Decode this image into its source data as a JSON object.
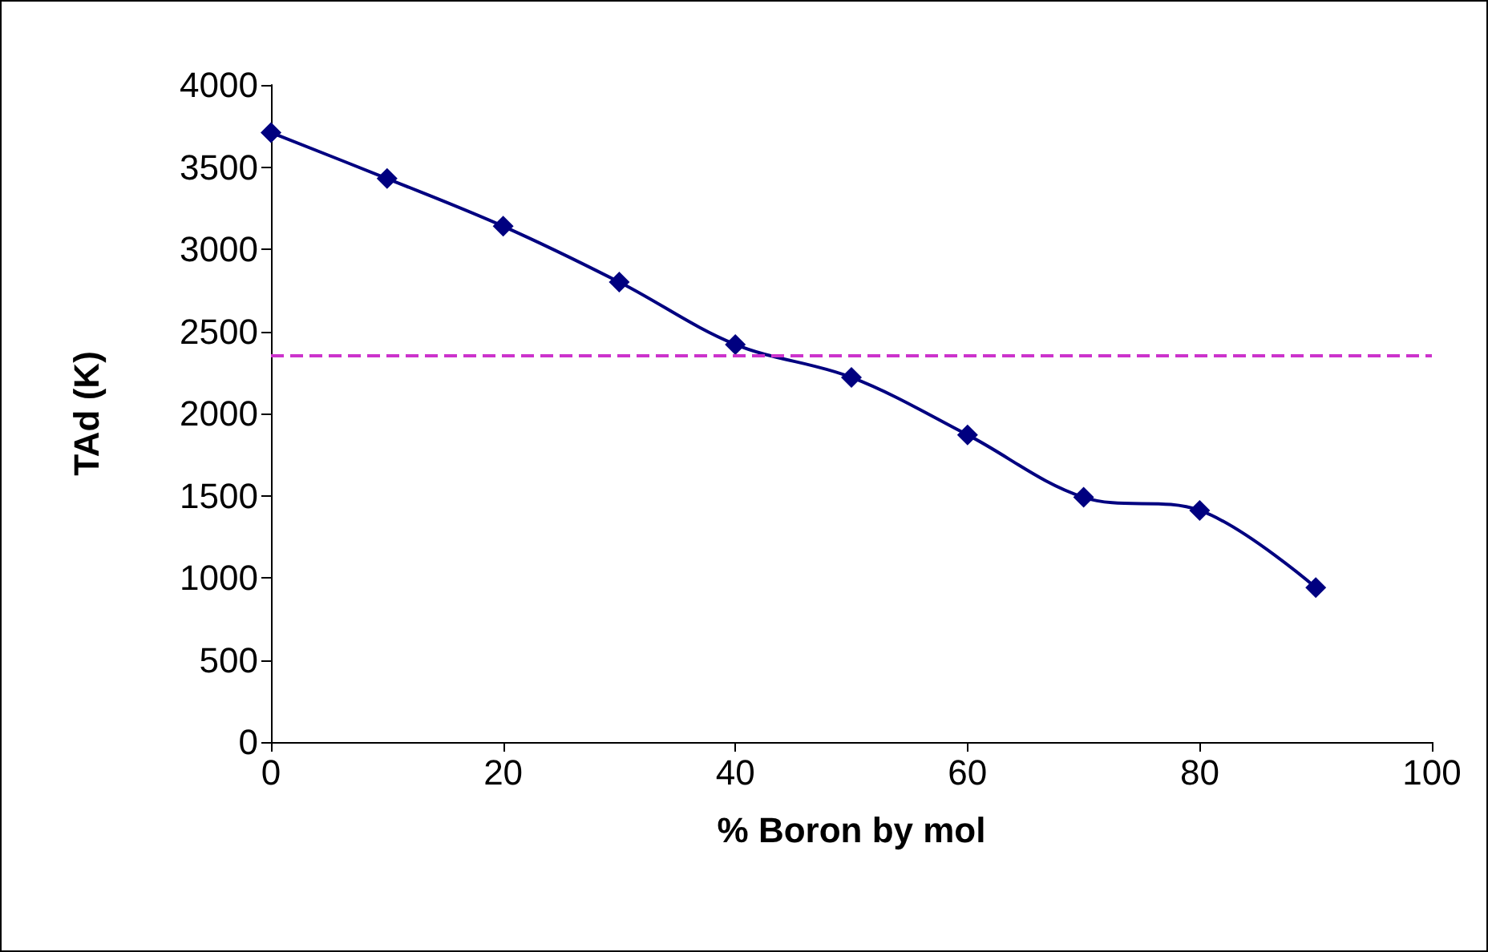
{
  "chart_data": {
    "type": "line",
    "xlabel": "% Boron by mol",
    "ylabel": "TAd (K)",
    "x": [
      0,
      10,
      20,
      30,
      40,
      50,
      60,
      70,
      80,
      90
    ],
    "series": [
      {
        "color": "#000080",
        "values": [
          3710,
          3430,
          3140,
          2800,
          2420,
          2220,
          1870,
          1490,
          1410,
          940
        ]
      }
    ],
    "xlim": [
      0,
      100
    ],
    "xticks": [
      0,
      20,
      40,
      60,
      80,
      100
    ],
    "ylim": [
      0,
      4000
    ],
    "yticks": [
      0,
      500,
      1000,
      1500,
      2000,
      2500,
      3000,
      3500,
      4000
    ],
    "ref_lines": [
      {
        "axis": "y",
        "value": 2350,
        "color": "#cc33cc",
        "line_style": "dashed"
      }
    ],
    "grid": false,
    "marker": "diamond",
    "line_style": "solid"
  }
}
